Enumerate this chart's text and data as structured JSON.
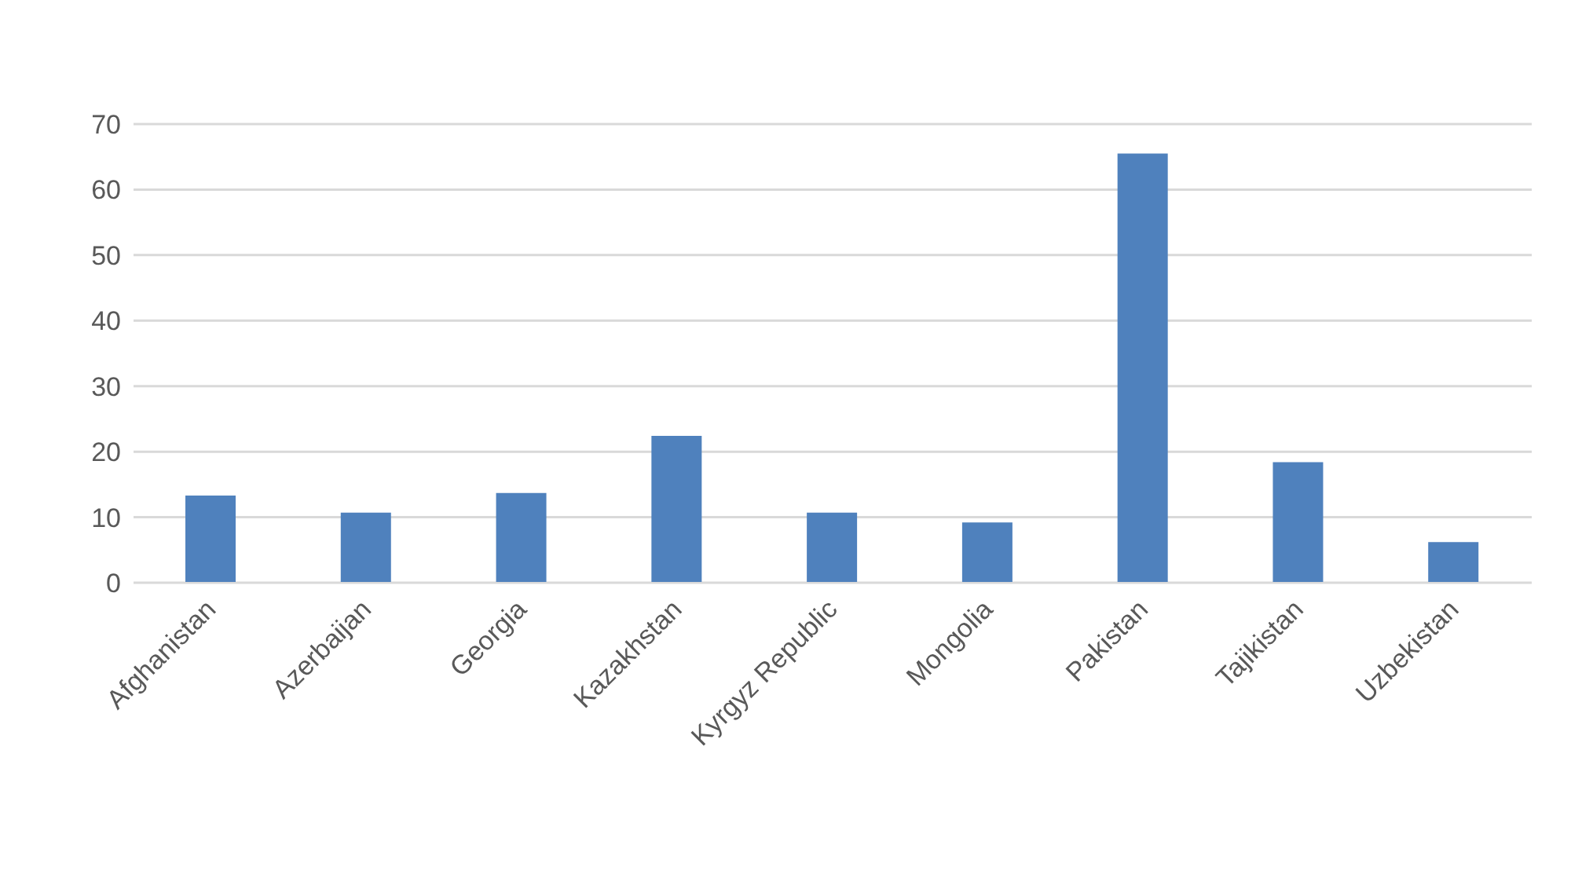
{
  "chart_data": {
    "type": "bar",
    "categories": [
      "Afghanistan",
      "Azerbaijan",
      "Georgia",
      "Kazakhstan",
      "Kyrgyz Republic",
      "Mongolia",
      "Pakistan",
      "Tajikistan",
      "Uzbekistan"
    ],
    "values": [
      13.3,
      10.7,
      13.7,
      22.4,
      10.7,
      9.2,
      65.5,
      18.4,
      6.2
    ],
    "color": "#4f81bd",
    "ylim": [
      0,
      70
    ],
    "yticks": [
      0,
      10,
      20,
      30,
      40,
      50,
      60,
      70
    ],
    "grid": "y",
    "legend": false
  }
}
